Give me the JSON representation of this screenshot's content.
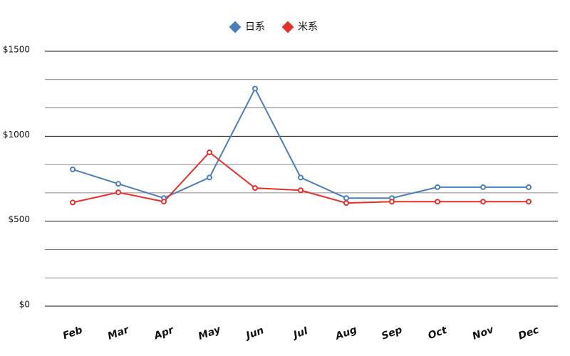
{
  "chart_data": {
    "type": "line",
    "categories": [
      "Feb",
      "Mar",
      "Apr",
      "May",
      "Jun",
      "Jul",
      "Aug",
      "Sep",
      "Oct",
      "Nov",
      "Dec"
    ],
    "series": [
      {
        "name": "日系",
        "color": "#4a7ebb",
        "values": [
          805,
          720,
          636,
          757,
          1280,
          757,
          636,
          636,
          700,
          700,
          700
        ]
      },
      {
        "name": "米系",
        "color": "#e8302a",
        "values": [
          610,
          670,
          615,
          905,
          695,
          682,
          607,
          615,
          615,
          615,
          615
        ]
      }
    ],
    "ylim": [
      0,
      1500
    ],
    "yticks": [
      {
        "value": 0,
        "label": "$0"
      },
      {
        "value": 500,
        "label": "$500"
      },
      {
        "value": 1000,
        "label": "$1000"
      },
      {
        "value": 1500,
        "label": "$1500"
      }
    ],
    "grid": true,
    "minor_grid_divisions": 3,
    "legend": "top"
  }
}
